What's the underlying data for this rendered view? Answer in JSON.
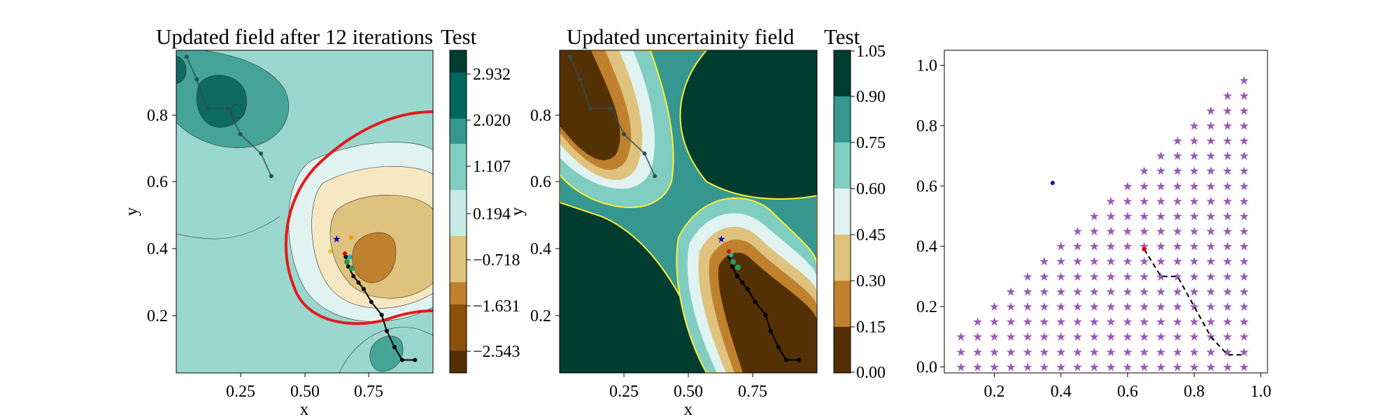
{
  "chart_data": [
    {
      "type": "contour",
      "title": "Updated field after 12 iterations",
      "xlabel": "x",
      "ylabel": "y",
      "xlim": [
        0,
        1
      ],
      "ylim": [
        0,
        1
      ],
      "xticks": [
        "0.25",
        "0.50",
        "0.75"
      ],
      "yticks": [
        "0.2",
        "0.4",
        "0.6",
        "0.8"
      ],
      "colorbar": {
        "label": "Test",
        "ticks": [
          "2.932",
          "2.020",
          "1.107",
          "0.194",
          "−0.718",
          "−1.631",
          "−2.543"
        ],
        "levels": 9,
        "colors": [
          "#543005",
          "#8c510a",
          "#bf812d",
          "#dfc27d",
          "#f6e8c3",
          "#c7eae5",
          "#80cdc1",
          "#35978f",
          "#01665e",
          "#003c30"
        ]
      },
      "boundary_color": "#e31a1c",
      "path_points": [
        [
          0.93,
          0.04
        ],
        [
          0.88,
          0.04
        ],
        [
          0.85,
          0.08
        ],
        [
          0.82,
          0.13
        ],
        [
          0.8,
          0.18
        ],
        [
          0.76,
          0.22
        ],
        [
          0.73,
          0.26
        ],
        [
          0.71,
          0.28
        ],
        [
          0.69,
          0.3
        ],
        [
          0.67,
          0.33
        ],
        [
          0.66,
          0.36
        ]
      ],
      "upper_path_points": [
        [
          0.37,
          0.61
        ],
        [
          0.33,
          0.68
        ],
        [
          0.25,
          0.74
        ],
        [
          0.2,
          0.82
        ],
        [
          0.12,
          0.82
        ],
        [
          0.08,
          0.91
        ],
        [
          0.04,
          0.98
        ]
      ],
      "markers": [
        {
          "label": "star",
          "x": 0.63,
          "y": 0.43,
          "color": "#0000cc"
        },
        {
          "label": "red",
          "x": 0.65,
          "y": 0.39,
          "color": "#dd0000"
        },
        {
          "label": "orange",
          "x": 0.69,
          "y": 0.42,
          "color": "#ff8c00"
        },
        {
          "label": "yellow",
          "x": 0.6,
          "y": 0.4,
          "color": "#e6c200"
        }
      ]
    },
    {
      "type": "contour",
      "title": "Updated uncertainity field",
      "xlabel": "x",
      "ylabel": "y",
      "xlim": [
        0,
        1
      ],
      "ylim": [
        0,
        1
      ],
      "xticks": [
        "0.25",
        "0.50",
        "0.75"
      ],
      "yticks": [
        "0.2",
        "0.4",
        "0.6",
        "0.8"
      ],
      "colorbar": {
        "label": "Test",
        "ticks": [
          "1.05",
          "0.90",
          "0.75",
          "0.60",
          "0.45",
          "0.30",
          "0.15",
          "0.00"
        ],
        "levels": [
          0,
          0.15,
          0.3,
          0.45,
          0.6,
          0.75,
          0.9,
          1.05
        ],
        "colors": [
          "#543005",
          "#bf812d",
          "#dfc27d",
          "#e0f3f1",
          "#80cdc1",
          "#35978f",
          "#003c30"
        ]
      },
      "contour_line_color": "#ffee33"
    },
    {
      "type": "scatter",
      "xlim": [
        0.05,
        1.02
      ],
      "ylim": [
        -0.02,
        1.05
      ],
      "xticks": [
        "0.2",
        "0.4",
        "0.6",
        "0.8",
        "1.0"
      ],
      "yticks": [
        "0.0",
        "0.2",
        "0.4",
        "0.6",
        "0.8",
        "1.0"
      ],
      "grid": false,
      "star_color": "#9b59b6",
      "grid_points": "triangular lattice with spacing 0.05 covering y <= x, x from 0.1 to 0.95",
      "blue_point": {
        "x": 0.375,
        "y": 0.61,
        "color": "#0000cc"
      },
      "red_point": {
        "x": 0.65,
        "y": 0.39,
        "color": "#dd0000"
      },
      "path": [
        [
          0.65,
          0.39
        ],
        [
          0.7,
          0.3
        ],
        [
          0.75,
          0.3
        ],
        [
          0.8,
          0.2
        ],
        [
          0.85,
          0.1
        ],
        [
          0.9,
          0.04
        ],
        [
          0.95,
          0.04
        ]
      ]
    }
  ]
}
